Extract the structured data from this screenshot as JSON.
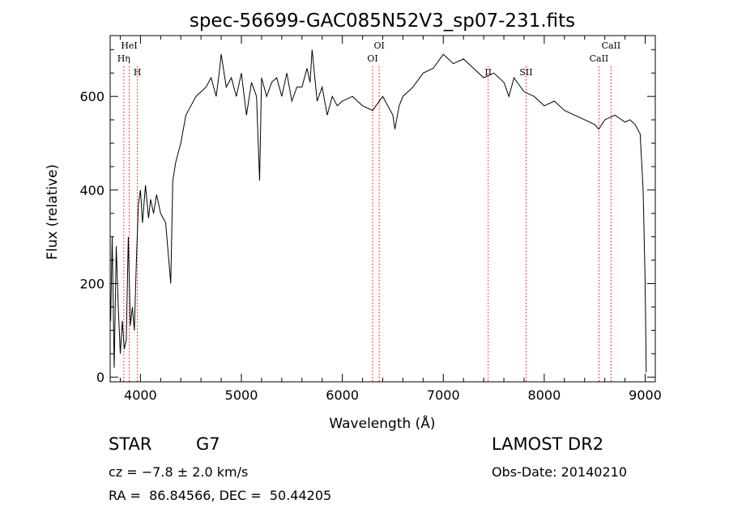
{
  "title": "spec-56699-GAC085N52V3_sp07-231.fits",
  "info": {
    "class": "STAR",
    "subclass": "G7",
    "cz": "cz = −7.8 ± 2.0 km/s",
    "radec": "RA =  86.84566, DEC =  50.44205",
    "survey": "LAMOST DR2",
    "obsdate": "Obs-Date: 20140210"
  },
  "chart_data": {
    "type": "line",
    "title": "spec-56699-GAC085N52V3_sp07-231.fits",
    "xlabel": "Wavelength (Å)",
    "ylabel": "Flux (relative)",
    "xlim": [
      3700,
      9100
    ],
    "ylim": [
      -10,
      730
    ],
    "xticks": [
      4000,
      5000,
      6000,
      7000,
      8000,
      9000
    ],
    "yticks": [
      0,
      200,
      400,
      600
    ],
    "grid": false,
    "line_color": "#000000",
    "marker_color": "#ff0000",
    "series": [
      {
        "x": [
          3705,
          3720,
          3740,
          3760,
          3780,
          3800,
          3820,
          3840,
          3860,
          3880,
          3900,
          3920,
          3940,
          3960,
          3980,
          4000,
          4020,
          4050,
          4080,
          4100,
          4130,
          4160,
          4200,
          4250,
          4300,
          4320,
          4350,
          4400,
          4450,
          4500,
          4550,
          4600,
          4650,
          4700,
          4750,
          4780,
          4800,
          4850,
          4900,
          4950,
          5000,
          5050,
          5100,
          5150,
          5180,
          5200,
          5250,
          5300,
          5350,
          5400,
          5450,
          5500,
          5550,
          5600,
          5650,
          5680,
          5700,
          5750,
          5800,
          5850,
          5900,
          5950,
          6000,
          6100,
          6200,
          6300,
          6400,
          6500,
          6520,
          6563,
          6600,
          6700,
          6800,
          6900,
          7000,
          7100,
          7200,
          7300,
          7400,
          7500,
          7600,
          7650,
          7700,
          7800,
          7900,
          8000,
          8100,
          8200,
          8300,
          8400,
          8500,
          8540,
          8600,
          8700,
          8800,
          8850,
          8900,
          8950,
          8980,
          9000,
          9010
        ],
        "y": [
          120,
          300,
          20,
          280,
          150,
          50,
          120,
          60,
          80,
          300,
          110,
          150,
          100,
          250,
          370,
          400,
          330,
          410,
          340,
          380,
          350,
          390,
          350,
          330,
          200,
          420,
          460,
          500,
          560,
          580,
          600,
          610,
          620,
          640,
          600,
          650,
          690,
          620,
          640,
          600,
          650,
          560,
          630,
          600,
          420,
          640,
          600,
          630,
          640,
          600,
          650,
          590,
          620,
          620,
          660,
          630,
          700,
          590,
          620,
          560,
          600,
          580,
          590,
          600,
          580,
          570,
          600,
          560,
          530,
          580,
          600,
          620,
          650,
          660,
          690,
          670,
          680,
          660,
          640,
          650,
          630,
          600,
          640,
          610,
          600,
          580,
          590,
          570,
          560,
          550,
          540,
          530,
          550,
          560,
          545,
          550,
          540,
          520,
          400,
          200,
          10
        ]
      }
    ],
    "annotations": [
      {
        "label": "HeI",
        "x": 3889,
        "row": 0
      },
      {
        "label": "Hη",
        "x": 3835,
        "row": 1
      },
      {
        "label": "H",
        "x": 3970,
        "row": 2
      },
      {
        "label": "OI",
        "x": 6365,
        "row": 0
      },
      {
        "label": "OI",
        "x": 6300,
        "row": 1
      },
      {
        "label": "II",
        "x": 7445,
        "row": 2
      },
      {
        "label": "SII",
        "x": 7820,
        "row": 2
      },
      {
        "label": "CaII",
        "x": 8662,
        "row": 0
      },
      {
        "label": "CaII",
        "x": 8542,
        "row": 1
      }
    ]
  }
}
